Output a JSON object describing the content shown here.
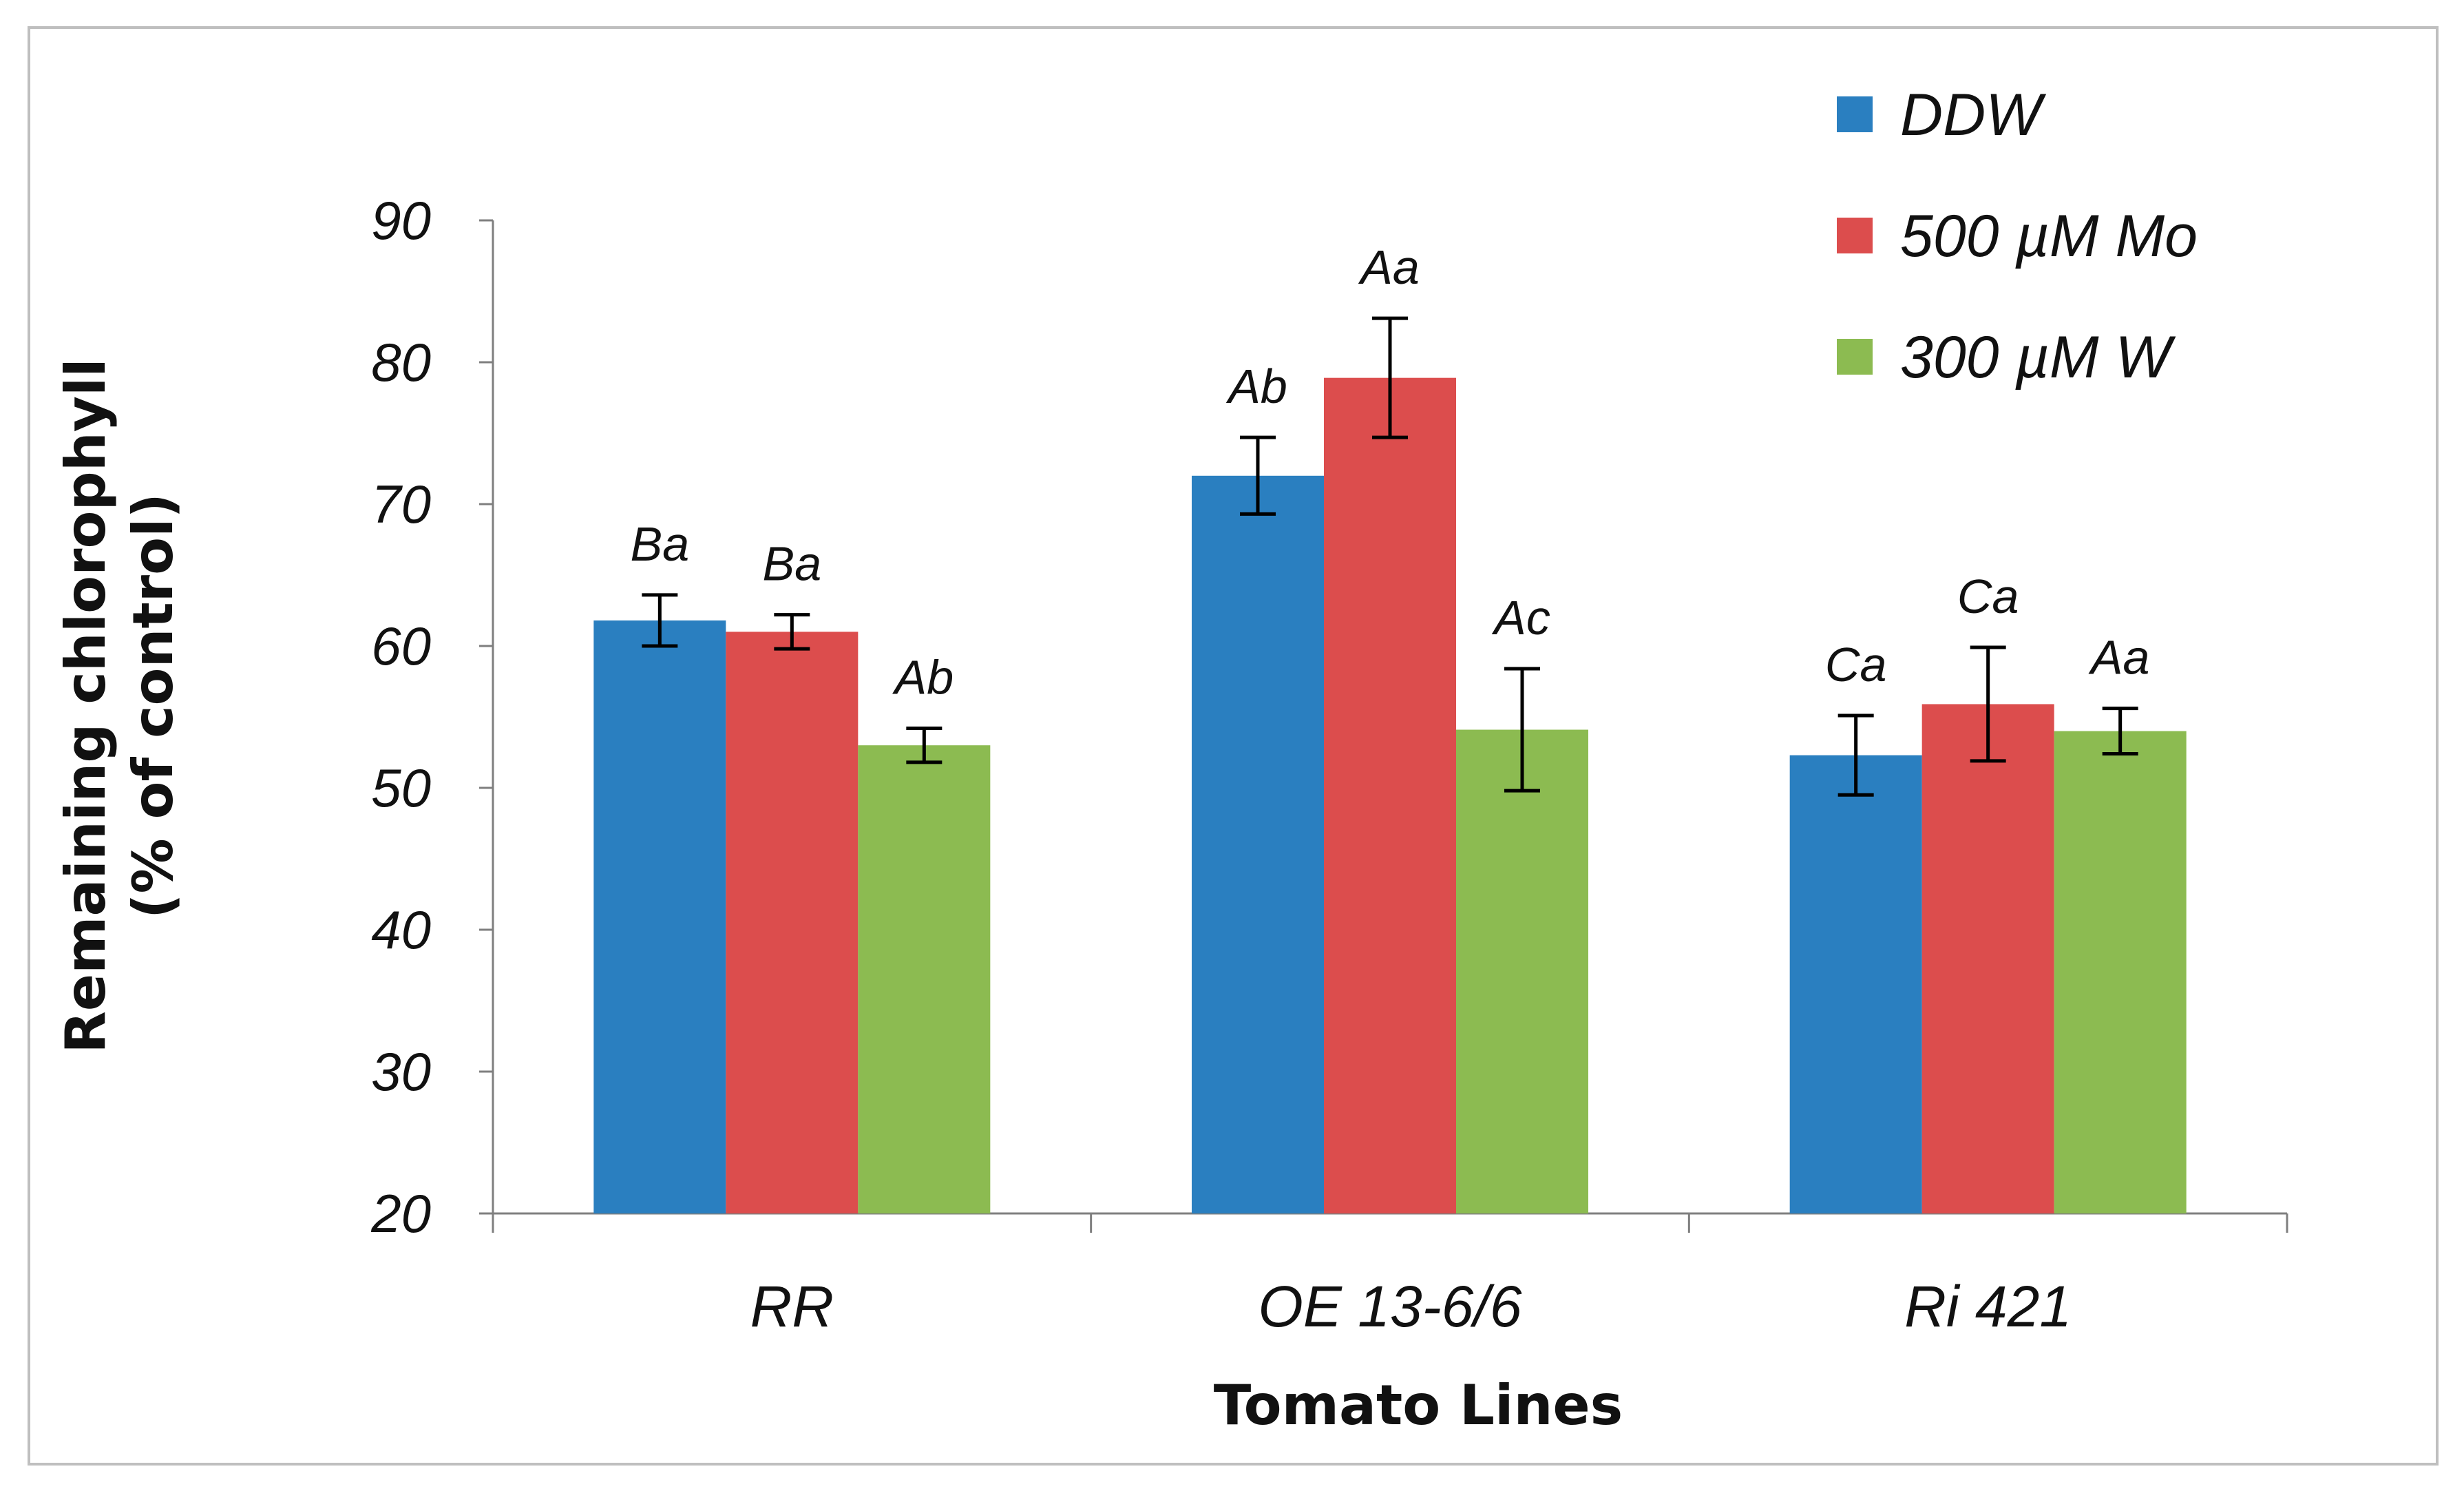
{
  "chart_data": {
    "type": "bar",
    "title": "",
    "xlabel": "Tomato Lines",
    "ylabel": [
      "Remaining chlorophyll",
      "(% of control)"
    ],
    "ylim": [
      20,
      90
    ],
    "yticks": [
      20,
      30,
      40,
      50,
      60,
      70,
      80,
      90
    ],
    "grid": false,
    "legend_position": "top-right",
    "categories": [
      "RR",
      "OE 13-6/6",
      "Ri 421"
    ],
    "series": [
      {
        "name": "DDW",
        "color": "#2a7fc0",
        "values": [
          61.8,
          72.0,
          52.3
        ],
        "errors": [
          1.8,
          2.7,
          2.8
        ],
        "labels": [
          "Ba",
          "Ab",
          "Ca"
        ]
      },
      {
        "name": "500 µM Mo",
        "color": "#dc4d4d",
        "values": [
          61.0,
          78.9,
          55.9
        ],
        "errors": [
          1.2,
          4.2,
          4.0
        ],
        "labels": [
          "Ba",
          "Aa",
          "Ca"
        ]
      },
      {
        "name": "300 µM W",
        "color": "#8cbb51",
        "values": [
          53.0,
          54.1,
          54.0
        ],
        "errors": [
          1.2,
          4.3,
          1.6
        ],
        "labels": [
          "Ab",
          "Ac",
          "Aa"
        ]
      }
    ]
  }
}
